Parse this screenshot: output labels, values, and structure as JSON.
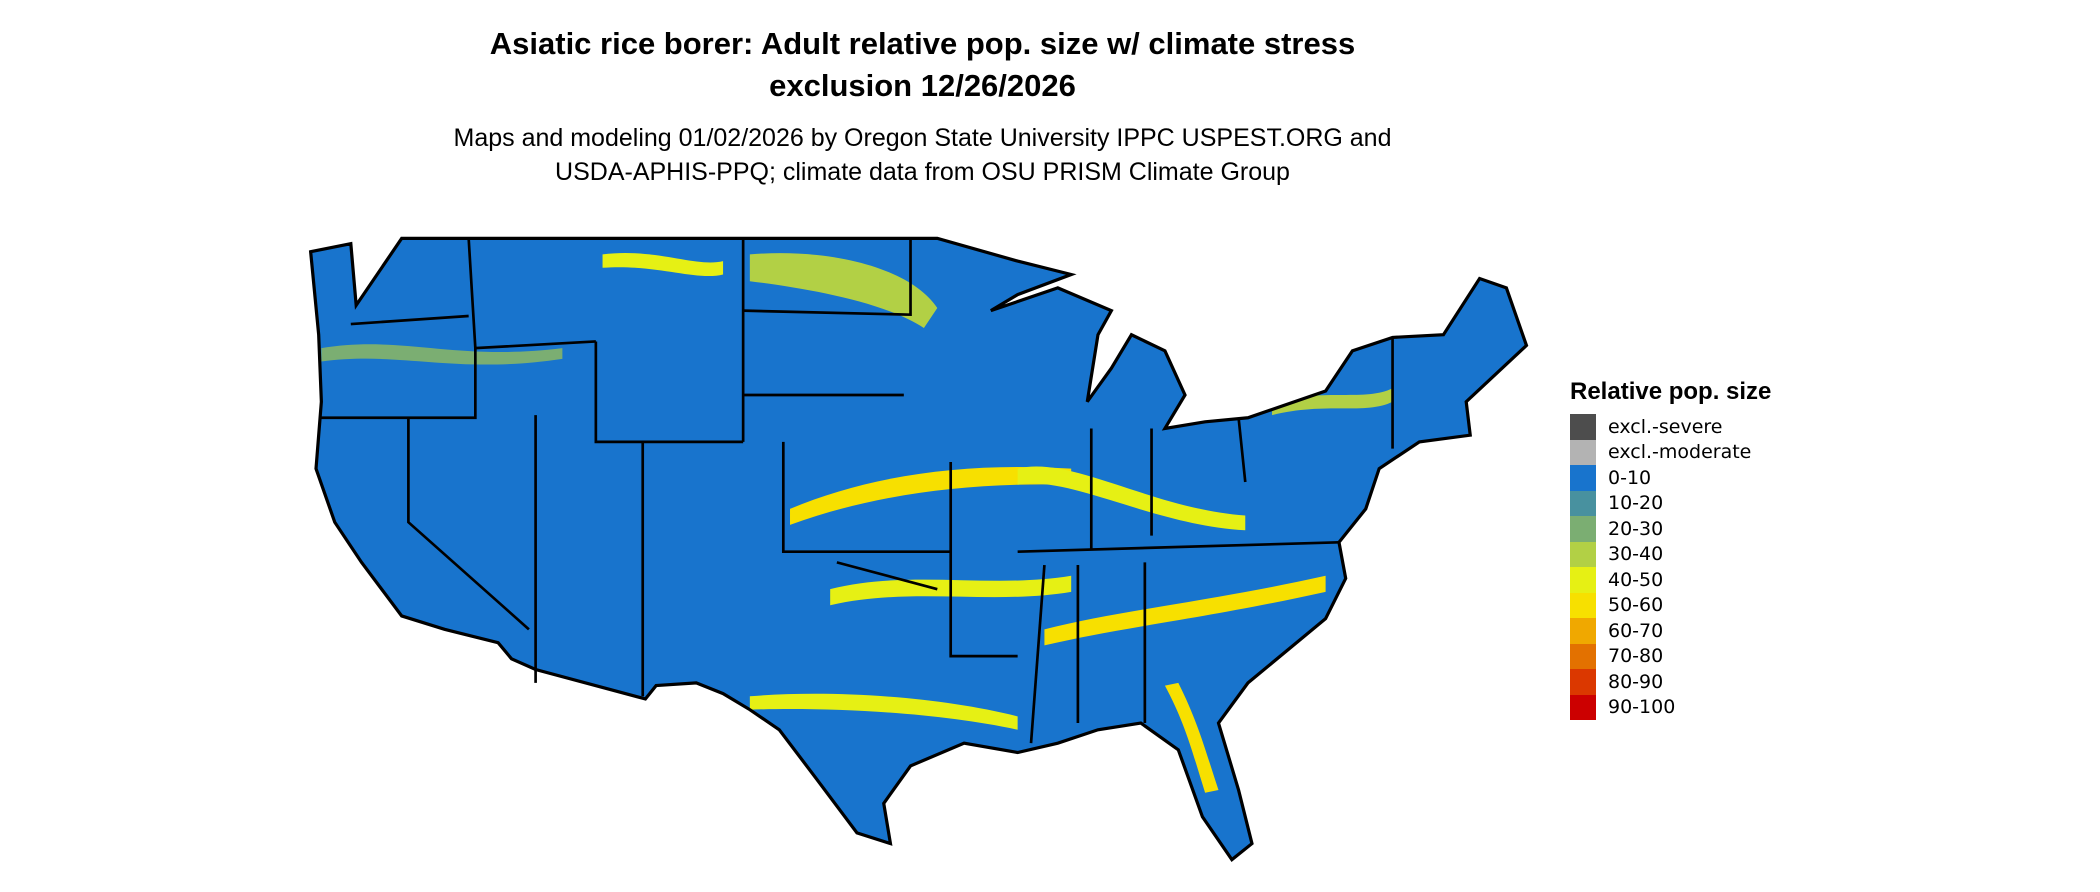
{
  "title": {
    "line1": "Asiatic rice borer: Adult relative pop. size w/ climate stress",
    "line2": "exclusion 12/26/2026"
  },
  "subtitle": {
    "line1": "Maps and modeling 01/02/2026 by Oregon State University IPPC USPEST.ORG and",
    "line2": "USDA-APHIS-PPQ; climate data from OSU PRISM Climate Group"
  },
  "map": {
    "region": "Contiguous United States",
    "base_color": "#1874CD",
    "band_colors": [
      "#4A9199",
      "#7BAE72",
      "#B2D045",
      "#E6F014",
      "#F7E000"
    ],
    "border_color": "#000000"
  },
  "legend": {
    "title": "Relative pop. size",
    "items": [
      {
        "label": "excl.-severe",
        "color": "#4D4D4D"
      },
      {
        "label": "excl.-moderate",
        "color": "#B3B3B3"
      },
      {
        "label": "0-10",
        "color": "#1874CD"
      },
      {
        "label": "10-20",
        "color": "#48919F"
      },
      {
        "label": "20-30",
        "color": "#7BAE72"
      },
      {
        "label": "30-40",
        "color": "#B2D045"
      },
      {
        "label": "40-50",
        "color": "#E6F014"
      },
      {
        "label": "50-60",
        "color": "#F7E000"
      },
      {
        "label": "60-70",
        "color": "#F0A800"
      },
      {
        "label": "70-80",
        "color": "#E37100"
      },
      {
        "label": "80-90",
        "color": "#DB3800"
      },
      {
        "label": "90-100",
        "color": "#CC0000"
      }
    ]
  }
}
